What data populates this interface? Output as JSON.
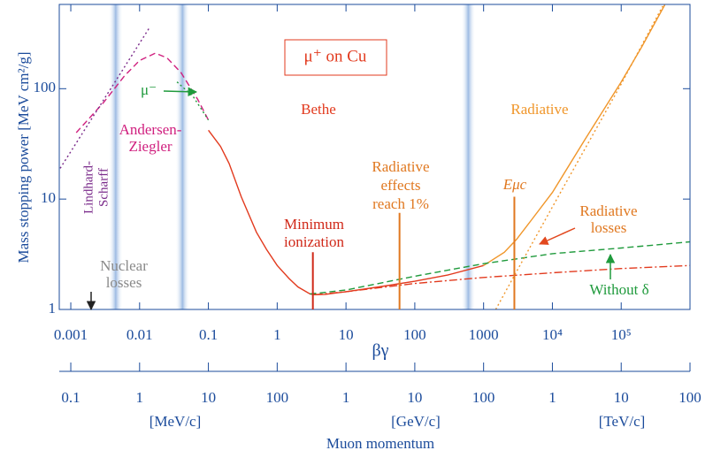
{
  "chart_data": {
    "type": "line",
    "log_x": true,
    "log_y": true,
    "title": "μ⁺ on Cu",
    "x_label": "βγ",
    "y_label": "Mass stopping power [MeV cm²/g]",
    "xlim": [
      0.00068,
      1000000
    ],
    "ylim": [
      1,
      580
    ],
    "xticks": [
      0.001,
      0.01,
      0.1,
      1,
      10,
      100,
      1000,
      {
        "value": 10000,
        "label": "10⁴"
      },
      {
        "value": 100000,
        "label": "10⁵"
      }
    ],
    "yticks": [
      1,
      10,
      100
    ],
    "x2_label": "Muon momentum",
    "x2lim": [
      0.068,
      100000000
    ],
    "x2ticks": [
      0.1,
      1,
      10,
      100,
      {
        "value": 1000,
        "label": "1"
      },
      {
        "value": 10000,
        "label": "10"
      },
      {
        "value": 100000,
        "label": "100"
      },
      {
        "value": 1000000,
        "label": "1"
      },
      {
        "value": 10000000,
        "label": "10"
      },
      {
        "value": 100000000,
        "label": "100"
      }
    ],
    "x2_units": [
      "[MeV/c]",
      "[GeV/c]",
      "[TeV/c]"
    ],
    "bands": [
      0.0045,
      0.042,
      600
    ],
    "series": [
      {
        "color": "#e23a1e",
        "dash": "solid",
        "x": [
          0.1,
          0.15,
          0.2,
          0.3,
          0.5,
          0.7,
          1,
          1.5,
          2,
          3,
          3.5,
          5,
          10,
          30,
          100,
          300,
          1000
        ],
        "values": [
          42,
          30,
          21,
          10.5,
          5,
          3.5,
          2.5,
          1.9,
          1.6,
          1.38,
          1.36,
          1.37,
          1.45,
          1.6,
          1.8,
          2.05,
          2.5
        ]
      },
      {
        "color": "#f0962a",
        "dash": "solid",
        "x": [
          1000,
          2000,
          3000,
          5000,
          10000,
          30000,
          100000,
          200000,
          430000
        ],
        "values": [
          2.5,
          3.3,
          4.3,
          6.5,
          11.5,
          35,
          115,
          240,
          575
        ]
      },
      {
        "color": "#e23a1e",
        "dash": "dashdot",
        "x": [
          3.5,
          10,
          100,
          1000,
          10000,
          100000,
          1000000
        ],
        "values": [
          1.36,
          1.45,
          1.72,
          1.95,
          2.15,
          2.35,
          2.5
        ]
      },
      {
        "color": "#1f9a3c",
        "dash": "dashed",
        "x": [
          3,
          10,
          100,
          1000,
          10000,
          100000,
          1000000
        ],
        "values": [
          1.38,
          1.5,
          2.0,
          2.6,
          3.2,
          3.6,
          4.1
        ]
      },
      {
        "color": "#f0962a",
        "dash": "dotted",
        "x": [
          1500,
          3000,
          10000,
          100000,
          400000
        ],
        "values": [
          1,
          2.2,
          8.5,
          110,
          560
        ]
      },
      {
        "color": "#d0207f",
        "dash": "dashed",
        "x": [
          0.0012,
          0.003,
          0.006,
          0.01,
          0.017,
          0.025,
          0.04,
          0.07,
          0.1
        ],
        "values": [
          40,
          75,
          130,
          180,
          210,
          190,
          140,
          80,
          52
        ]
      },
      {
        "color": "#7a2a8a",
        "dash": "dotted",
        "x": [
          0.0007,
          0.014
        ],
        "values": [
          19,
          360
        ]
      },
      {
        "color": "#1f9a3c",
        "dash": "dotted",
        "x": [
          0.035,
          0.06,
          0.1
        ],
        "values": [
          115,
          85,
          52
        ]
      }
    ],
    "markers": [
      {
        "x": 3.3,
        "top": 3.3,
        "color": "#d02818",
        "label": [
          "Minimum",
          "ionization"
        ]
      },
      {
        "x": 60,
        "top": 7.5,
        "color": "#e07820",
        "label": [
          "Radiative",
          "effects",
          "reach 1%"
        ]
      },
      {
        "x": 2800,
        "top": 10.5,
        "color": "#e07820",
        "label": [
          "Eμc"
        ]
      }
    ],
    "annotations": [
      {
        "color": "#e23a1e",
        "text": [
          "Bethe"
        ]
      },
      {
        "color": "#f0962a",
        "text": [
          "Radiative"
        ]
      },
      {
        "color": "#d0207f",
        "text": [
          "Andersen-",
          "Ziegler"
        ]
      },
      {
        "color": "#7a2a8a",
        "text": [
          "Lindhard-",
          "Scharff"
        ]
      },
      {
        "color": "#8a8a8a",
        "text": [
          "Nuclear",
          "losses"
        ]
      },
      {
        "color": "#1f9a3c",
        "text": [
          "μ⁻"
        ]
      },
      {
        "color": "#e07820",
        "text": [
          "Radiative",
          "losses"
        ]
      },
      {
        "color": "#1f9a3c",
        "text": [
          "Without  δ"
        ]
      }
    ]
  }
}
